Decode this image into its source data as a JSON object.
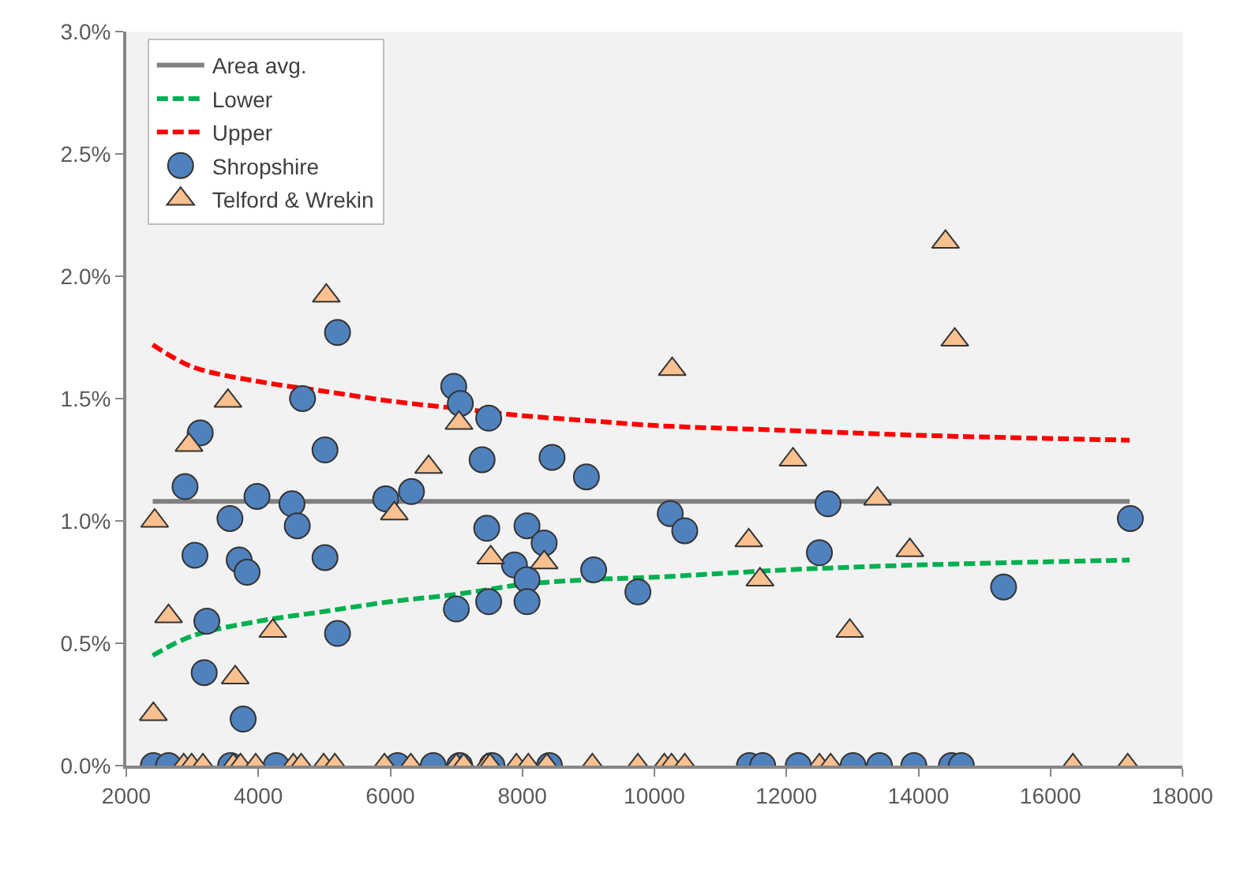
{
  "chart_data": {
    "type": "scatter",
    "xlim": [
      2000,
      18000
    ],
    "xticks": [
      2000,
      4000,
      6000,
      8000,
      10000,
      12000,
      14000,
      16000,
      18000
    ],
    "ylim": [
      0,
      3
    ],
    "yticks": [
      {
        "value": 0,
        "label": "0.0%"
      },
      {
        "value": 0.5,
        "label": "0.5%"
      },
      {
        "value": 1,
        "label": "1.0%"
      },
      {
        "value": 1.5,
        "label": "1.5%"
      },
      {
        "value": 2,
        "label": "2.0%"
      },
      {
        "value": 2.5,
        "label": "2.5%"
      },
      {
        "value": 3,
        "label": "3.0%"
      }
    ],
    "grid": false,
    "legend": "top left",
    "series": [
      {
        "name": "Area avg.",
        "type": "line",
        "color": "#808080",
        "line_style": "solid",
        "marker": "none",
        "x": [
          2400,
          17200
        ],
        "values": [
          1.08,
          1.08
        ]
      },
      {
        "name": "Lower",
        "type": "line",
        "color": "#00b050",
        "line_style": "dashed",
        "marker": "none",
        "x": [
          2400,
          3000,
          4000,
          5000,
          6000,
          7000,
          8000,
          9000,
          10000,
          12000,
          14000,
          17200
        ],
        "values": [
          0.45,
          0.53,
          0.59,
          0.63,
          0.67,
          0.7,
          0.74,
          0.76,
          0.77,
          0.8,
          0.82,
          0.84
        ]
      },
      {
        "name": "Upper",
        "type": "line",
        "color": "#ff0000",
        "line_style": "dashed",
        "marker": "none",
        "x": [
          2400,
          3000,
          4000,
          5000,
          6000,
          7000,
          8000,
          9000,
          10000,
          12000,
          14000,
          17200
        ],
        "values": [
          1.72,
          1.63,
          1.57,
          1.53,
          1.49,
          1.46,
          1.43,
          1.41,
          1.39,
          1.37,
          1.35,
          1.33
        ]
      },
      {
        "name": "Shropshire",
        "color": "#4f81bd",
        "marker": "circle",
        "x": [
          5200,
          4670,
          6960,
          7060,
          7490,
          3120,
          5010,
          2890,
          7390,
          8450,
          3980,
          5930,
          6320,
          4510,
          4590,
          3570,
          3040,
          3710,
          3830,
          5010,
          7460,
          8070,
          8330,
          7880,
          8070,
          7000,
          7490,
          8070,
          3220,
          5200,
          3180,
          3770,
          8970,
          10240,
          10460,
          12630,
          12500,
          9080,
          9750,
          17210,
          15290,
          2410,
          2640,
          3580,
          4270,
          6110,
          6650,
          7050,
          7540,
          8410,
          11440,
          11640,
          12180,
          13010,
          13410,
          13930,
          14500,
          14650
        ],
        "values": [
          1.77,
          1.5,
          1.55,
          1.48,
          1.42,
          1.36,
          1.29,
          1.14,
          1.25,
          1.26,
          1.1,
          1.09,
          1.12,
          1.07,
          0.98,
          1.01,
          0.86,
          0.84,
          0.79,
          0.85,
          0.97,
          0.98,
          0.91,
          0.82,
          0.76,
          0.64,
          0.67,
          0.67,
          0.59,
          0.54,
          0.38,
          0.19,
          1.18,
          1.03,
          0.96,
          1.07,
          0.87,
          0.8,
          0.71,
          1.01,
          0.73,
          0,
          0,
          0,
          0,
          0,
          0,
          0,
          0,
          0,
          0,
          0,
          0,
          0,
          0,
          0,
          0,
          0
        ]
      },
      {
        "name": "Telford & Wrekin",
        "color": "#fac090",
        "marker": "triangle",
        "x": [
          5030,
          3540,
          2950,
          7040,
          6580,
          2430,
          6060,
          7520,
          8330,
          2640,
          4220,
          3650,
          10270,
          12100,
          11430,
          11600,
          14410,
          14550,
          13380,
          13870,
          12960,
          2410,
          2870,
          2990,
          3160,
          3620,
          3730,
          3960,
          4530,
          4650,
          4990,
          5160,
          5910,
          6310,
          7000,
          7110,
          7460,
          7510,
          7910,
          8090,
          8370,
          9060,
          9750,
          10150,
          10260,
          10460,
          12500,
          12670,
          16340,
          17170
        ],
        "values": [
          1.92,
          1.49,
          1.31,
          1.4,
          1.22,
          1.0,
          1.03,
          0.85,
          0.83,
          0.61,
          0.55,
          0.36,
          1.62,
          1.25,
          0.92,
          0.76,
          2.14,
          1.74,
          1.09,
          0.88,
          0.55,
          0.21,
          0,
          0,
          0,
          0,
          0,
          0,
          0,
          0,
          0,
          0,
          0,
          0,
          0,
          0,
          0,
          0,
          0,
          0,
          0,
          0,
          0,
          0,
          0,
          0,
          0,
          0,
          0,
          0
        ]
      }
    ]
  }
}
